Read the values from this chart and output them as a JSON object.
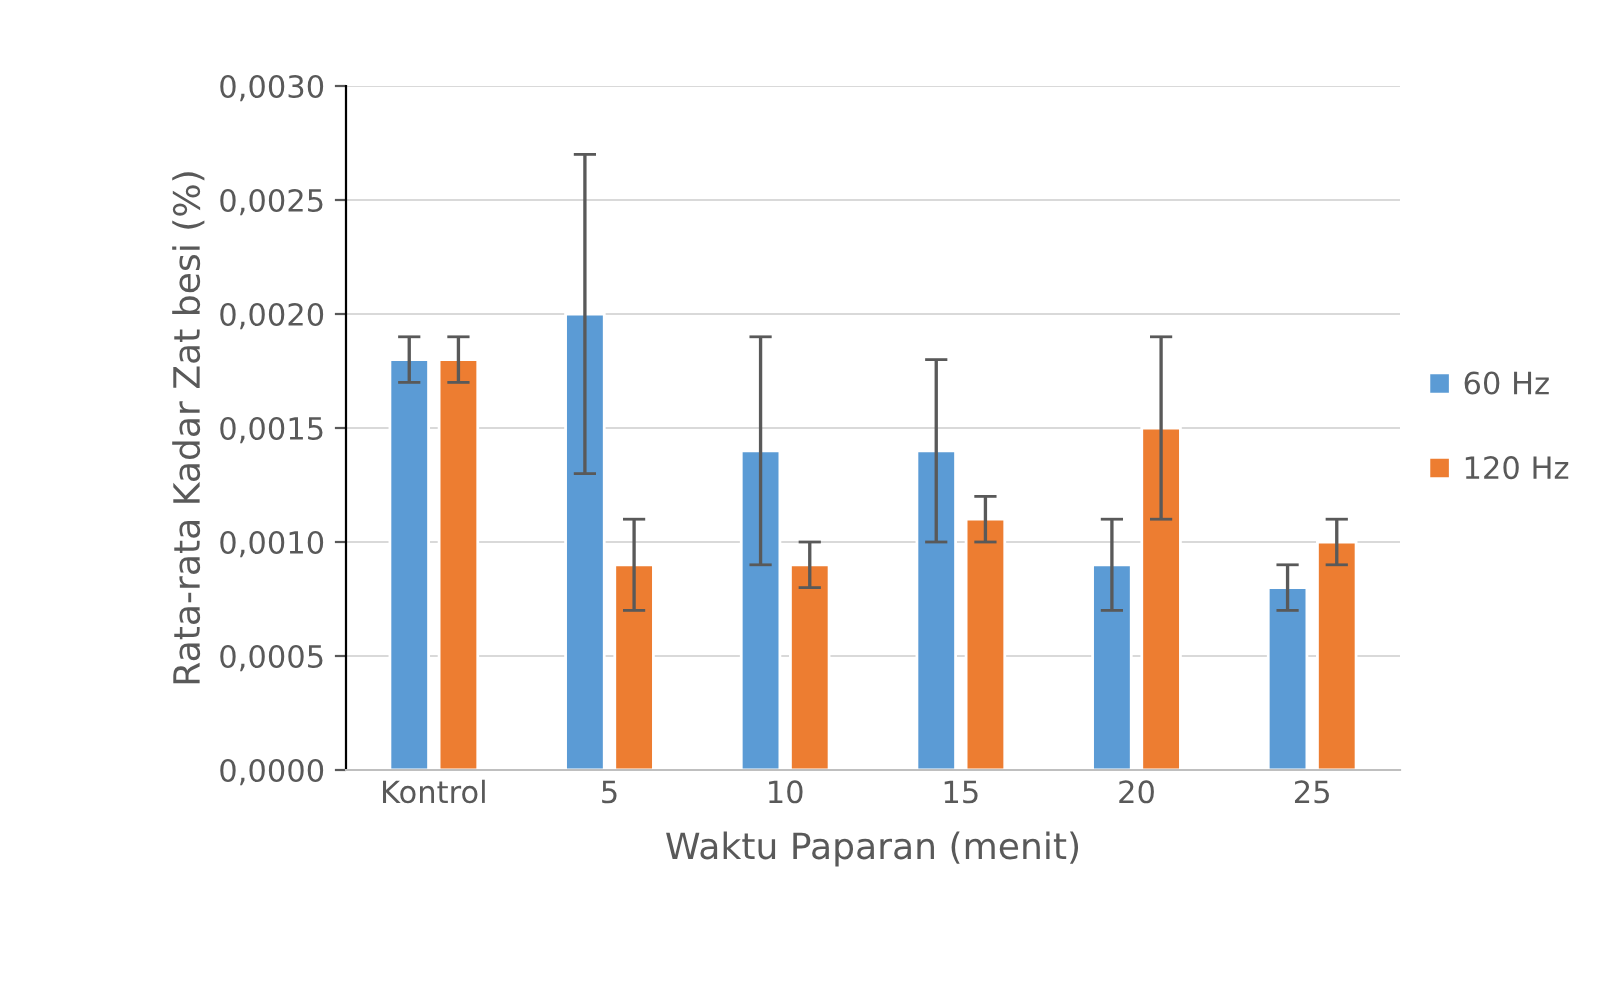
{
  "chart_data": {
    "type": "bar",
    "xlabel": "Waktu Paparan (menit)",
    "ylabel": "Rata-rata Kadar Zat besi (%)",
    "categories": [
      "Kontrol",
      "5",
      "10",
      "15",
      "20",
      "25"
    ],
    "series": [
      {
        "name": "60 Hz",
        "color": "#5b9bd5",
        "values": [
          0.0018,
          0.002,
          0.0014,
          0.0014,
          0.0009,
          0.0008
        ],
        "errors": [
          0.0001,
          0.0007,
          0.0005,
          0.0004,
          0.0002,
          0.0001
        ]
      },
      {
        "name": "120 Hz",
        "color": "#ed7d31",
        "values": [
          0.0018,
          0.0009,
          0.0009,
          0.0011,
          0.0015,
          0.001
        ],
        "errors": [
          0.0001,
          0.0002,
          0.0001,
          0.0001,
          0.0004,
          0.0001
        ]
      }
    ],
    "ylim": [
      0,
      0.003
    ],
    "yticks": [
      {
        "value": 0,
        "label": "0,0000"
      },
      {
        "value": 0.0005,
        "label": "0,0005"
      },
      {
        "value": 0.001,
        "label": "0,0010"
      },
      {
        "value": 0.0015,
        "label": "0,0015"
      },
      {
        "value": 0.002,
        "label": "0,0020"
      },
      {
        "value": 0.0025,
        "label": "0,0025"
      },
      {
        "value": 0.003,
        "label": "0,0030"
      }
    ],
    "grid": "y",
    "legend": "right"
  }
}
